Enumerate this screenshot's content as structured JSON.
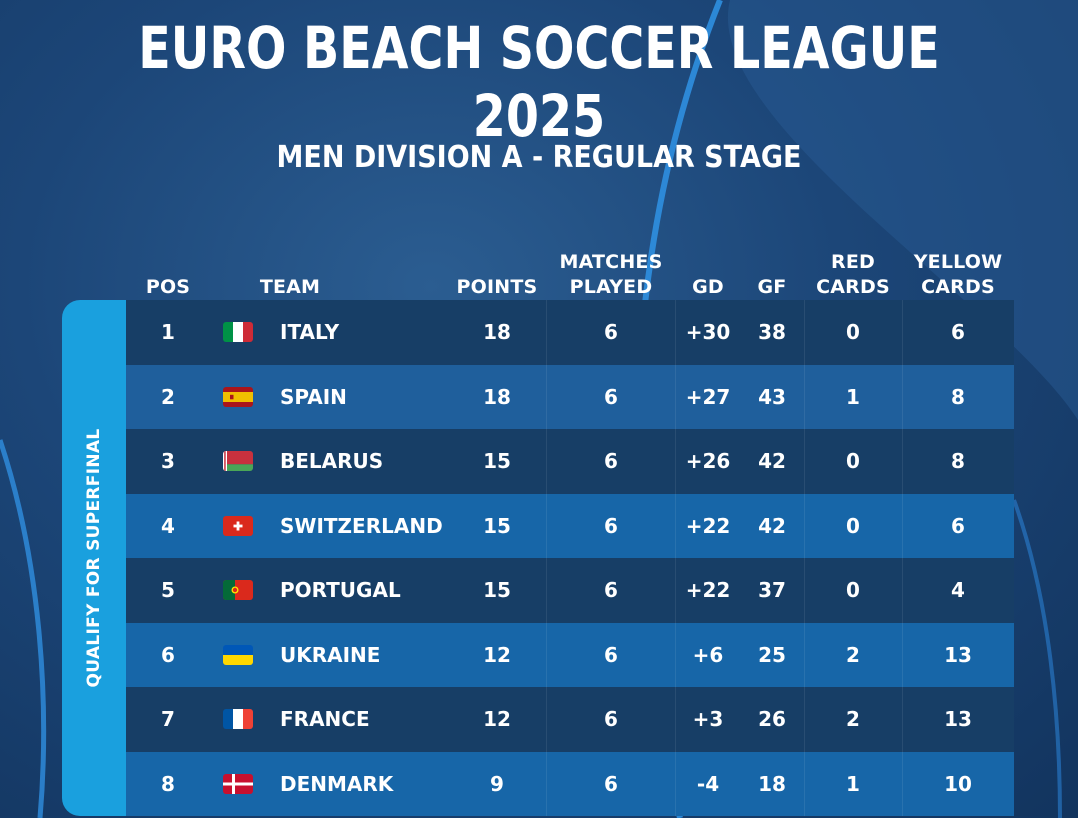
{
  "title": "EURO BEACH SOCCER LEAGUE 2025",
  "subtitle": "MEN DIVISION A - REGULAR STAGE",
  "qualify_label": "QUALIFY FOR SUPERFINAL",
  "headers": {
    "pos": "POS",
    "team": "TEAM",
    "points": "POINTS",
    "matches_1": "MATCHES",
    "matches_2": "PLAYED",
    "gd": "GD",
    "gf": "GF",
    "red_1": "RED",
    "red_2": "CARDS",
    "yellow_1": "YELLOW",
    "yellow_2": "CARDS"
  },
  "rows": [
    {
      "pos": "1",
      "team": "ITALY",
      "flag": "italy-flag",
      "points": "18",
      "played": "6",
      "gd": "+30",
      "gf": "38",
      "red": "0",
      "yellow": "6"
    },
    {
      "pos": "2",
      "team": "SPAIN",
      "flag": "spain-flag",
      "points": "18",
      "played": "6",
      "gd": "+27",
      "gf": "43",
      "red": "1",
      "yellow": "8"
    },
    {
      "pos": "3",
      "team": "BELARUS",
      "flag": "belarus-flag",
      "points": "15",
      "played": "6",
      "gd": "+26",
      "gf": "42",
      "red": "0",
      "yellow": "8"
    },
    {
      "pos": "4",
      "team": "SWITZERLAND",
      "flag": "switzerland-flag",
      "points": "15",
      "played": "6",
      "gd": "+22",
      "gf": "42",
      "red": "0",
      "yellow": "6"
    },
    {
      "pos": "5",
      "team": "PORTUGAL",
      "flag": "portugal-flag",
      "points": "15",
      "played": "6",
      "gd": "+22",
      "gf": "37",
      "red": "0",
      "yellow": "4"
    },
    {
      "pos": "6",
      "team": "UKRAINE",
      "flag": "ukraine-flag",
      "points": "12",
      "played": "6",
      "gd": "+6",
      "gf": "25",
      "red": "2",
      "yellow": "13"
    },
    {
      "pos": "7",
      "team": "FRANCE",
      "flag": "france-flag",
      "points": "12",
      "played": "6",
      "gd": "+3",
      "gf": "26",
      "red": "2",
      "yellow": "13"
    },
    {
      "pos": "8",
      "team": "DENMARK",
      "flag": "denmark-flag",
      "points": "9",
      "played": "6",
      "gd": "-4",
      "gf": "18",
      "red": "1",
      "yellow": "10"
    }
  ],
  "colors": {
    "background": "#1c4678",
    "qualify_band": "#1aa0de",
    "row_dark": "#173e66",
    "row_mid": "#1f5f9c",
    "row_light": "#1766a8"
  }
}
